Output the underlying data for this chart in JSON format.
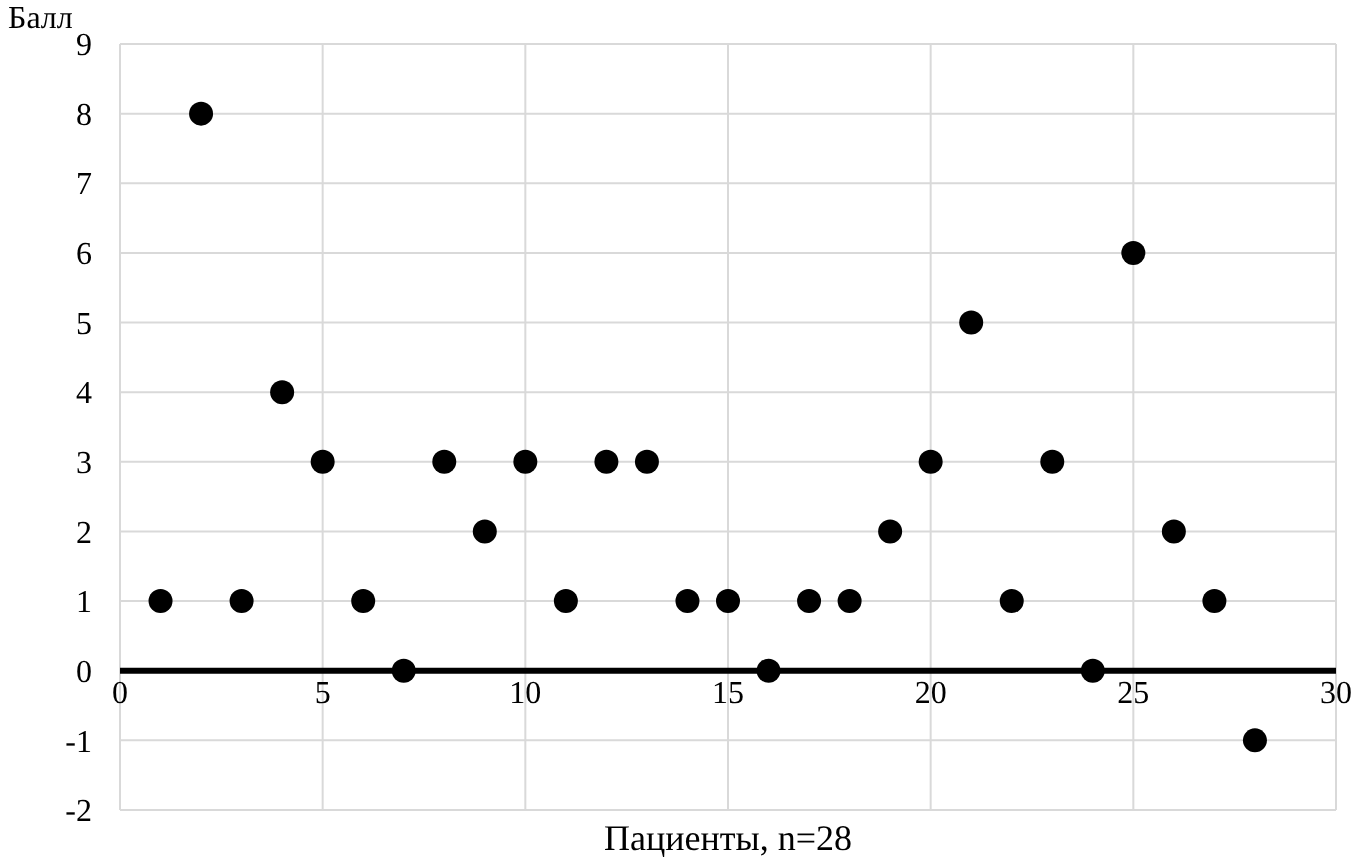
{
  "chart_data": {
    "type": "scatter",
    "xlabel": "Пациенты, n=28",
    "ylabel": "Балл",
    "x": [
      1,
      2,
      3,
      4,
      5,
      6,
      7,
      8,
      9,
      10,
      11,
      12,
      13,
      14,
      15,
      16,
      17,
      18,
      19,
      20,
      21,
      22,
      23,
      24,
      25,
      26,
      27,
      28
    ],
    "series": [
      {
        "color": "#000000",
        "values": [
          1,
          8,
          1,
          4,
          3,
          1,
          0,
          3,
          2,
          3,
          1,
          3,
          3,
          1,
          1,
          0,
          1,
          1,
          2,
          3,
          5,
          1,
          3,
          0,
          6,
          2,
          1,
          -1
        ]
      }
    ],
    "xlim": [
      0,
      30
    ],
    "ylim": [
      -2,
      9
    ],
    "xticks": [
      0,
      5,
      10,
      15,
      20,
      25,
      30
    ],
    "yticks": [
      -2,
      -1,
      0,
      1,
      2,
      3,
      4,
      5,
      6,
      7,
      8,
      9
    ],
    "grid": true,
    "marker": "circle"
  }
}
